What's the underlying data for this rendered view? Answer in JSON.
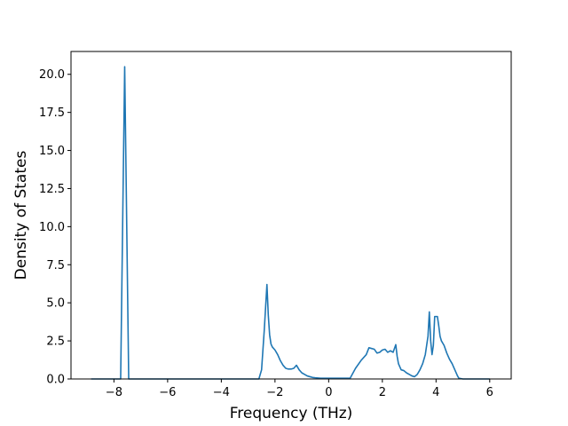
{
  "chart_data": {
    "type": "line",
    "title": "",
    "xlabel": "Frequency (THz)",
    "ylabel": "Density of States",
    "xlim": [
      -9.6,
      6.8
    ],
    "ylim": [
      0,
      21.5
    ],
    "xticks": [
      -8,
      -6,
      -4,
      -2,
      0,
      2,
      4,
      6
    ],
    "xtick_labels": [
      "−8",
      "−6",
      "−4",
      "−2",
      "0",
      "2",
      "4",
      "6"
    ],
    "yticks": [
      0,
      2.5,
      5,
      7.5,
      10,
      12.5,
      15,
      17.5,
      20
    ],
    "ytick_labels": [
      "0.0",
      "2.5",
      "5.0",
      "7.5",
      "10.0",
      "12.5",
      "15.0",
      "17.5",
      "20.0"
    ],
    "grid": false,
    "line_color": "#1f77b4",
    "series": [
      {
        "x": [
          -8.85,
          -7.75,
          -7.6,
          -7.45,
          -7.3,
          -2.6,
          -2.5,
          -2.4,
          -2.3,
          -2.25,
          -2.2,
          -2.15,
          -2.1,
          -2.0,
          -1.9,
          -1.8,
          -1.7,
          -1.6,
          -1.5,
          -1.4,
          -1.3,
          -1.2,
          -1.1,
          -1.0,
          -0.9,
          -0.8,
          -0.7,
          -0.6,
          -0.5,
          -0.3,
          0.0,
          0.4,
          0.8,
          1.0,
          1.2,
          1.4,
          1.5,
          1.6,
          1.7,
          1.8,
          1.9,
          2.0,
          2.1,
          2.2,
          2.3,
          2.4,
          2.5,
          2.55,
          2.6,
          2.7,
          2.8,
          2.9,
          3.0,
          3.1,
          3.2,
          3.3,
          3.4,
          3.5,
          3.6,
          3.7,
          3.75,
          3.8,
          3.85,
          3.9,
          3.95,
          4.0,
          4.05,
          4.1,
          4.15,
          4.2,
          4.3,
          4.4,
          4.5,
          4.6,
          4.7,
          4.8,
          4.85,
          5.0,
          6.0
        ],
        "y": [
          0.0,
          0.0,
          20.5,
          0.0,
          0.0,
          0.0,
          0.6,
          3.2,
          6.2,
          4.2,
          2.9,
          2.3,
          2.1,
          1.9,
          1.6,
          1.2,
          0.9,
          0.7,
          0.65,
          0.65,
          0.7,
          0.9,
          0.6,
          0.4,
          0.3,
          0.2,
          0.15,
          0.1,
          0.08,
          0.05,
          0.05,
          0.05,
          0.05,
          0.7,
          1.2,
          1.6,
          2.05,
          2.0,
          1.95,
          1.7,
          1.75,
          1.9,
          1.95,
          1.75,
          1.85,
          1.75,
          2.25,
          1.5,
          1.0,
          0.6,
          0.55,
          0.4,
          0.3,
          0.2,
          0.15,
          0.3,
          0.6,
          1.0,
          1.6,
          2.8,
          4.4,
          2.5,
          1.6,
          2.2,
          4.1,
          4.1,
          4.1,
          3.5,
          2.8,
          2.5,
          2.2,
          1.7,
          1.3,
          1.0,
          0.6,
          0.2,
          0.05,
          0.0,
          0.0
        ]
      }
    ]
  }
}
